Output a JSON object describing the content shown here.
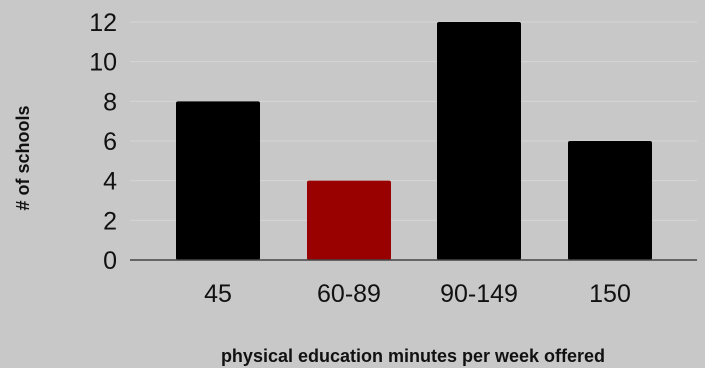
{
  "chart_data": {
    "type": "bar",
    "categories": [
      "45",
      "60-89",
      "90-149",
      "150"
    ],
    "values": [
      8,
      4,
      12,
      6
    ],
    "xlabel": "physical education minutes per week offered",
    "ylabel": "# of schools",
    "ylim": [
      0,
      12
    ],
    "yticks": [
      0,
      2,
      4,
      6,
      8,
      10,
      12
    ],
    "grid": true,
    "legend": "none",
    "colors": {
      "background": "#c8c8c8",
      "default_bar": "#000000",
      "highlight_bar": "#990000",
      "gridline": "#d6d6d6",
      "axis": "#444444"
    },
    "highlight_index": 1
  }
}
